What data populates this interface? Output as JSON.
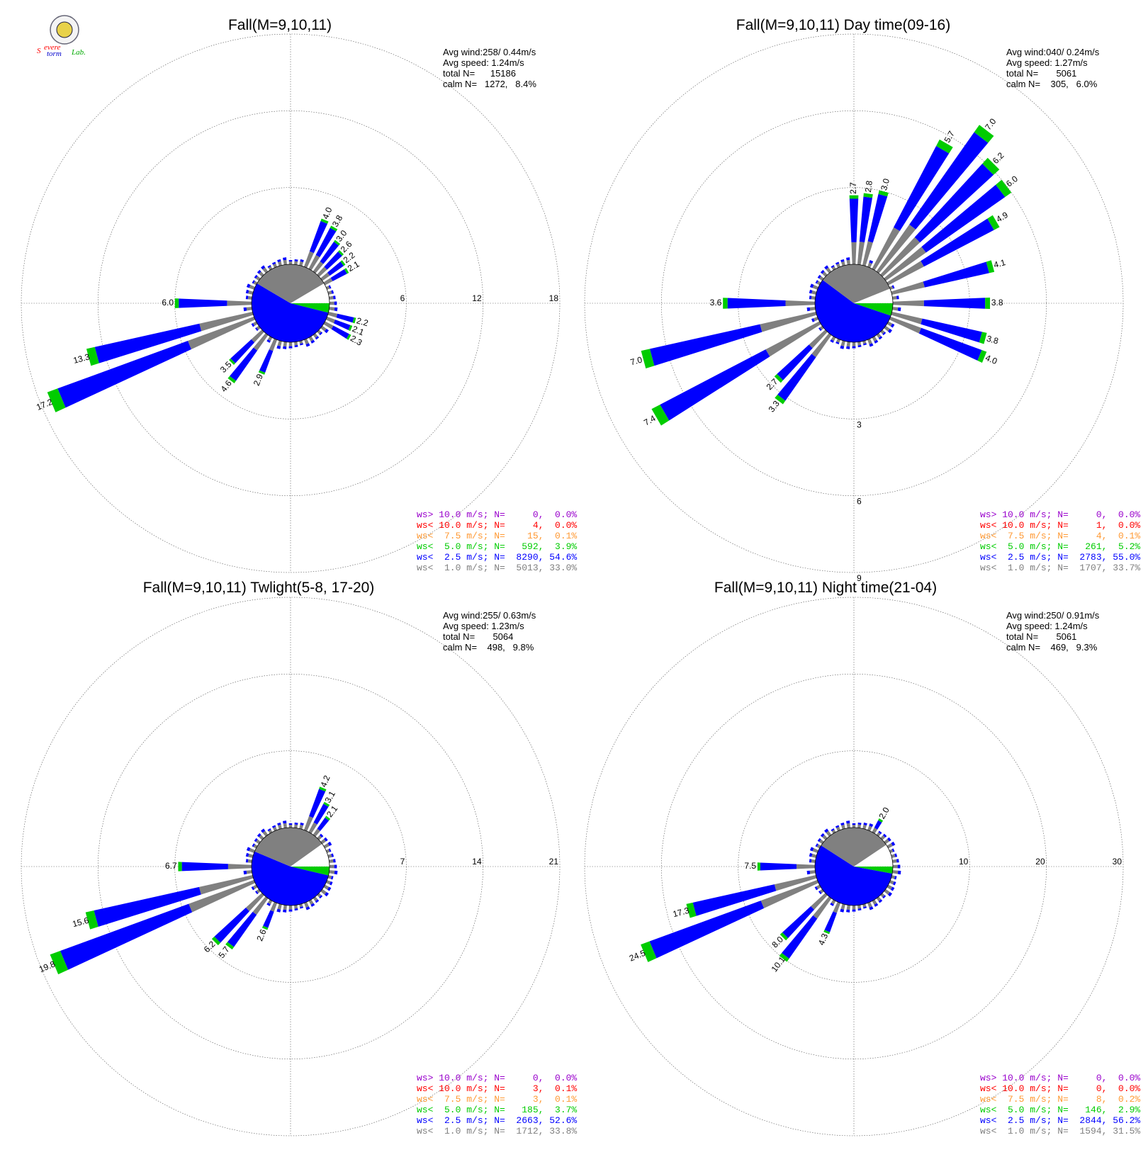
{
  "logo": {
    "text_s": "S",
    "text_evere": "evere",
    "text_torm": "torm",
    "text_lab": "Lab."
  },
  "colors": {
    "calm": "#ffffff",
    "ws_lt_1": "#808080",
    "ws_lt_2_5": "#0000ff",
    "ws_lt_5": "#00cc00",
    "ws_lt_7_5": "#ff9933",
    "ws_lt_10": "#ff0000",
    "ws_gt_10": "#9900cc"
  },
  "chart_data": [
    {
      "type": "polar-bar",
      "title": "Fall(M=9,10,11)",
      "stats": [
        "Avg wind:258/ 0.44m/s",
        "Avg speed: 1.24m/s",
        "total N=      15186",
        "calm N=   1272,   8.4%"
      ],
      "ring_ticks": [
        "6",
        "12",
        "18"
      ],
      "rmax": 18,
      "center_pie": {
        "calm": 8.4,
        "ws_lt_1": 33.0,
        "ws_lt_2_5": 54.6,
        "ws_lt_5": 3.9
      },
      "sectors": [
        {
          "dir": 22.5,
          "total": 4.0,
          "label": "4.0"
        },
        {
          "dir": 30,
          "total": 3.8,
          "label": "3.8"
        },
        {
          "dir": 37.5,
          "total": 3.0,
          "label": "3.0"
        },
        {
          "dir": 45,
          "total": 2.6,
          "label": "2.6"
        },
        {
          "dir": 52.5,
          "total": 2.2,
          "label": "2.2"
        },
        {
          "dir": 60,
          "total": 2.1,
          "label": "2.1"
        },
        {
          "dir": 105,
          "total": 2.2,
          "label": "2.2"
        },
        {
          "dir": 112.5,
          "total": 2.1,
          "label": "2.1"
        },
        {
          "dir": 120,
          "total": 2.3,
          "label": "2.3"
        },
        {
          "dir": 202.5,
          "total": 2.9,
          "label": "2.9"
        },
        {
          "dir": 217.5,
          "total": 4.6,
          "label": "4.6"
        },
        {
          "dir": 225,
          "total": 3.5,
          "label": "3.5"
        },
        {
          "dir": 247.5,
          "total": 17.2,
          "label": "17.2"
        },
        {
          "dir": 255,
          "total": 13.3,
          "label": "13.3"
        },
        {
          "dir": 270,
          "total": 6.0,
          "label": "6.0"
        }
      ],
      "legend": [
        {
          "key": "ws_gt_10",
          "text": "ws> 10.0 m/s; N=     0,  0.0%"
        },
        {
          "key": "ws_lt_10",
          "text": "ws< 10.0 m/s; N=     4,  0.0%"
        },
        {
          "key": "ws_lt_7_5",
          "text": "ws<  7.5 m/s; N=    15,  0.1%"
        },
        {
          "key": "ws_lt_5",
          "text": "ws<  5.0 m/s; N=   592,  3.9%"
        },
        {
          "key": "ws_lt_2_5",
          "text": "ws<  2.5 m/s; N=  8290, 54.6%"
        },
        {
          "key": "ws_lt_1",
          "text": "ws<  1.0 m/s; N=  5013, 33.0%"
        }
      ]
    },
    {
      "type": "polar-bar",
      "title": "Fall(M=9,10,11) Day time(09-16)",
      "stats": [
        "Avg wind:040/ 0.24m/s",
        "Avg speed: 1.27m/s",
        "total N=       5061",
        "calm N=    305,   6.0%"
      ],
      "ring_ticks": [
        "3",
        "6",
        "9"
      ],
      "rmax": 9,
      "center_pie": {
        "calm": 6.0,
        "ws_lt_1": 33.7,
        "ws_lt_2_5": 55.0,
        "ws_lt_5": 5.2
      },
      "sectors": [
        {
          "dir": 0,
          "total": 2.7,
          "label": "2.7"
        },
        {
          "dir": 7.5,
          "total": 2.8,
          "label": "2.8"
        },
        {
          "dir": 15,
          "total": 3.0,
          "label": "3.0"
        },
        {
          "dir": 30,
          "total": 5.7,
          "label": "5.7"
        },
        {
          "dir": 37.5,
          "total": 7.0,
          "label": "7.0"
        },
        {
          "dir": 45,
          "total": 6.2,
          "label": "6.2"
        },
        {
          "dir": 52.5,
          "total": 6.0,
          "label": "6.0"
        },
        {
          "dir": 60,
          "total": 4.9,
          "label": "4.9"
        },
        {
          "dir": 75,
          "total": 4.1,
          "label": "4.1"
        },
        {
          "dir": 90,
          "total": 3.8,
          "label": "3.8"
        },
        {
          "dir": 105,
          "total": 3.8,
          "label": "3.8"
        },
        {
          "dir": 112.5,
          "total": 4.0,
          "label": "4.0"
        },
        {
          "dir": 217.5,
          "total": 3.3,
          "label": "3.3"
        },
        {
          "dir": 225,
          "total": 2.7,
          "label": "2.7"
        },
        {
          "dir": 240,
          "total": 7.4,
          "label": "7.4"
        },
        {
          "dir": 255,
          "total": 7.0,
          "label": "7.0"
        },
        {
          "dir": 270,
          "total": 3.6,
          "label": "3.6"
        }
      ],
      "legend": [
        {
          "key": "ws_gt_10",
          "text": "ws> 10.0 m/s; N=     0,  0.0%"
        },
        {
          "key": "ws_lt_10",
          "text": "ws< 10.0 m/s; N=     1,  0.0%"
        },
        {
          "key": "ws_lt_7_5",
          "text": "ws<  7.5 m/s; N=     4,  0.1%"
        },
        {
          "key": "ws_lt_5",
          "text": "ws<  5.0 m/s; N=   261,  5.2%"
        },
        {
          "key": "ws_lt_2_5",
          "text": "ws<  2.5 m/s; N=  2783, 55.0%"
        },
        {
          "key": "ws_lt_1",
          "text": "ws<  1.0 m/s; N=  1707, 33.7%"
        }
      ]
    },
    {
      "type": "polar-bar",
      "title": "Fall(M=9,10,11) Twlight(5-8, 17-20)",
      "stats": [
        "Avg wind:255/ 0.63m/s",
        "Avg speed: 1.23m/s",
        "total N=       5064",
        "calm N=    498,   9.8%"
      ],
      "ring_ticks": [
        "7",
        "14",
        "21"
      ],
      "rmax": 21,
      "center_pie": {
        "calm": 9.8,
        "ws_lt_1": 33.8,
        "ws_lt_2_5": 52.6,
        "ws_lt_5": 3.7
      },
      "sectors": [
        {
          "dir": 22.5,
          "total": 4.2,
          "label": "4.2"
        },
        {
          "dir": 30,
          "total": 3.1,
          "label": "3.1"
        },
        {
          "dir": 37.5,
          "total": 2.1,
          "label": "2.1"
        },
        {
          "dir": 202.5,
          "total": 2.6,
          "label": "2.6"
        },
        {
          "dir": 217.5,
          "total": 5.7,
          "label": "5.7"
        },
        {
          "dir": 225,
          "total": 6.2,
          "label": "6.2"
        },
        {
          "dir": 247.5,
          "total": 19.8,
          "label": "19.8"
        },
        {
          "dir": 255,
          "total": 15.6,
          "label": "15.6"
        },
        {
          "dir": 270,
          "total": 6.7,
          "label": "6.7"
        }
      ],
      "legend": [
        {
          "key": "ws_gt_10",
          "text": "ws> 10.0 m/s; N=     0,  0.0%"
        },
        {
          "key": "ws_lt_10",
          "text": "ws< 10.0 m/s; N=     3,  0.1%"
        },
        {
          "key": "ws_lt_7_5",
          "text": "ws<  7.5 m/s; N=     3,  0.1%"
        },
        {
          "key": "ws_lt_5",
          "text": "ws<  5.0 m/s; N=   185,  3.7%"
        },
        {
          "key": "ws_lt_2_5",
          "text": "ws<  2.5 m/s; N=  2663, 52.6%"
        },
        {
          "key": "ws_lt_1",
          "text": "ws<  1.0 m/s; N=  1712, 33.8%"
        }
      ]
    },
    {
      "type": "polar-bar",
      "title": "Fall(M=9,10,11) Night time(21-04)",
      "stats": [
        "Avg wind:250/ 0.91m/s",
        "Avg speed: 1.24m/s",
        "total N=       5061",
        "calm N=    469,   9.3%"
      ],
      "ring_ticks": [
        "10",
        "20",
        "30"
      ],
      "rmax": 30,
      "center_pie": {
        "calm": 9.3,
        "ws_lt_1": 31.5,
        "ws_lt_2_5": 56.2,
        "ws_lt_5": 2.9
      },
      "sectors": [
        {
          "dir": 30,
          "total": 2.0,
          "label": "2.0"
        },
        {
          "dir": 202.5,
          "total": 4.3,
          "label": "4.3"
        },
        {
          "dir": 217.5,
          "total": 10.1,
          "label": "10.1"
        },
        {
          "dir": 225,
          "total": 8.0,
          "label": "8.0"
        },
        {
          "dir": 247.5,
          "total": 24.5,
          "label": "24.5"
        },
        {
          "dir": 255,
          "total": 17.3,
          "label": "17.3"
        },
        {
          "dir": 270,
          "total": 7.5,
          "label": "7.5"
        }
      ],
      "legend": [
        {
          "key": "ws_gt_10",
          "text": "ws> 10.0 m/s; N=     0,  0.0%"
        },
        {
          "key": "ws_lt_10",
          "text": "ws< 10.0 m/s; N=     0,  0.0%"
        },
        {
          "key": "ws_lt_7_5",
          "text": "ws<  7.5 m/s; N=     8,  0.2%"
        },
        {
          "key": "ws_lt_5",
          "text": "ws<  5.0 m/s; N=   146,  2.9%"
        },
        {
          "key": "ws_lt_2_5",
          "text": "ws<  2.5 m/s; N=  2844, 56.2%"
        },
        {
          "key": "ws_lt_1",
          "text": "ws<  1.0 m/s; N=  1594, 31.5%"
        }
      ]
    }
  ]
}
